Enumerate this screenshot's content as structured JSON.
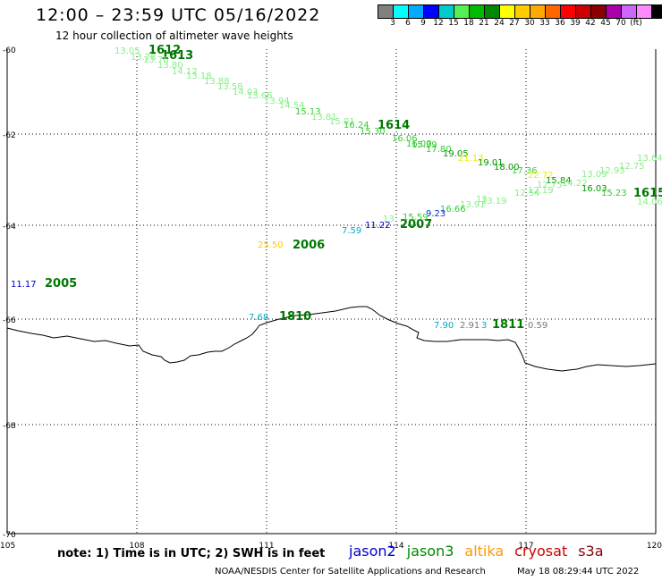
{
  "title": "12:00 – 23:59 UTC 05/16/2022",
  "subtitle": "12 hour collection of altimeter wave heights",
  "colorbar": {
    "unit_label": "(ft)",
    "colors": [
      "#808080",
      "#00ffff",
      "#00aaff",
      "#0000ff",
      "#00cccc",
      "#55ee55",
      "#00bb00",
      "#008800",
      "#ffff00",
      "#ffcc00",
      "#ffaa00",
      "#ff6600",
      "#ff0000",
      "#cc0000",
      "#880000",
      "#aa00aa",
      "#cc66ff",
      "#ff88ff",
      "#000000"
    ],
    "labels": [
      "3",
      "6",
      "9",
      "12",
      "15",
      "18",
      "21",
      "24",
      "27",
      "30",
      "33",
      "36",
      "39",
      "42",
      "45",
      "70"
    ]
  },
  "map": {
    "lon_range": [
      105,
      120
    ],
    "lat_range": [
      -70,
      -60
    ],
    "lon_ticks": [
      "105",
      "108",
      "111",
      "114",
      "117",
      "120"
    ],
    "lat_ticks": [
      "-60",
      "-62",
      "-64",
      "-66",
      "-68",
      "-70"
    ]
  },
  "tracks": [
    {
      "label": "1612",
      "color": "#007700"
    },
    {
      "label": "1613",
      "color": "#007700"
    },
    {
      "label": "1614",
      "color": "#007700"
    },
    {
      "label": "1615",
      "color": "#007700"
    },
    {
      "label": "2005",
      "color": "#007700"
    },
    {
      "label": "2006",
      "color": "#007700"
    },
    {
      "label": "2007",
      "color": "#007700"
    },
    {
      "label": "1810",
      "color": "#007700"
    },
    {
      "label": "1811",
      "color": "#007700"
    }
  ],
  "wave_heights": [
    {
      "v": "13.05",
      "c": "#88ee88"
    },
    {
      "v": "13.78",
      "c": "#88ee88"
    },
    {
      "v": "13.76",
      "c": "#88ee88"
    },
    {
      "v": "13.80",
      "c": "#88ee88"
    },
    {
      "v": "14.12",
      "c": "#88ee88"
    },
    {
      "v": "13.18",
      "c": "#88ee88"
    },
    {
      "v": "13.88",
      "c": "#88ee88"
    },
    {
      "v": "13.58",
      "c": "#88ee88"
    },
    {
      "v": "14.03",
      "c": "#88ee88"
    },
    {
      "v": "13.66",
      "c": "#88ee88"
    },
    {
      "v": "13.94",
      "c": "#88ee88"
    },
    {
      "v": "14.54",
      "c": "#88ee88"
    },
    {
      "v": "15.13",
      "c": "#33cc33"
    },
    {
      "v": "13.81",
      "c": "#88ee88"
    },
    {
      "v": "15.01",
      "c": "#88ee88"
    },
    {
      "v": "16.24",
      "c": "#33cc33"
    },
    {
      "v": "15.30",
      "c": "#33cc33"
    },
    {
      "v": "16.06",
      "c": "#33cc33"
    },
    {
      "v": "16.00",
      "c": "#33cc33"
    },
    {
      "v": "15.39",
      "c": "#33cc33"
    },
    {
      "v": "17.80",
      "c": "#33cc33"
    },
    {
      "v": "19.05",
      "c": "#009900"
    },
    {
      "v": "21.13",
      "c": "#eeee00"
    },
    {
      "v": "19.01",
      "c": "#009900"
    },
    {
      "v": "18.00",
      "c": "#009900"
    },
    {
      "v": "17.36",
      "c": "#33cc33"
    },
    {
      "v": "22.72",
      "c": "#eeee00"
    },
    {
      "v": "15.84",
      "c": "#009900"
    },
    {
      "v": "14.22",
      "c": "#88ee88"
    },
    {
      "v": "13.09",
      "c": "#88ee88"
    },
    {
      "v": "12.93",
      "c": "#88ee88"
    },
    {
      "v": "12.75",
      "c": "#88ee88"
    },
    {
      "v": "13.64",
      "c": "#88ee88"
    },
    {
      "v": "16.03",
      "c": "#009900"
    },
    {
      "v": "15.23",
      "c": "#33cc33"
    },
    {
      "v": "14.06",
      "c": "#88ee88"
    },
    {
      "v": "12.54",
      "c": "#88ee88"
    },
    {
      "v": "12.19",
      "c": "#88ee88"
    },
    {
      "v": "12.75",
      "c": "#88ee88"
    },
    {
      "v": "13.19",
      "c": "#88ee88"
    },
    {
      "v": "13.91",
      "c": "#88ee88"
    },
    {
      "v": "13",
      "c": "#88ee88"
    },
    {
      "v": "16.66",
      "c": "#33cc33"
    },
    {
      "v": "9.23",
      "c": "#0033cc"
    },
    {
      "v": "15.59",
      "c": "#33cc33"
    },
    {
      "v": "13",
      "c": "#88ee88"
    },
    {
      "v": "11.22",
      "c": "#0000cc"
    },
    {
      "v": "7.59",
      "c": "#00aacc"
    },
    {
      "v": "25.50",
      "c": "#ffcc00"
    },
    {
      "v": "11.17",
      "c": "#0000cc"
    },
    {
      "v": "7.68",
      "c": "#00aacc"
    },
    {
      "v": "7.90",
      "c": "#00aacc"
    },
    {
      "v": "2.91",
      "c": "#777777"
    },
    {
      "v": "3",
      "c": "#00aacc"
    },
    {
      "v": "0.59",
      "c": "#777777"
    }
  ],
  "note": "note:  1) Time is in UTC;  2) SWH is in feet",
  "satellites": [
    {
      "name": "jason2",
      "color": "#0000cc"
    },
    {
      "name": "jason3",
      "color": "#008800"
    },
    {
      "name": "altika",
      "color": "#ff9900"
    },
    {
      "name": "cryosat",
      "color": "#cc0000"
    },
    {
      "name": "s3a",
      "color": "#880000"
    }
  ],
  "credit": "NOAA/NESDIS Center for Satellite Applications and Research",
  "timestamp": "May 18 08:29:44 UTC 2022"
}
